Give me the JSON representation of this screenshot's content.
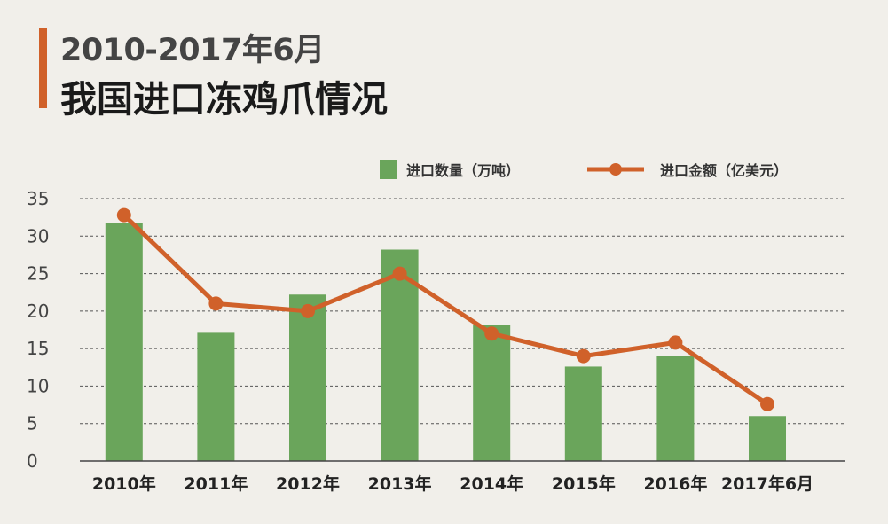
{
  "title": {
    "line1": "2010-2017年6月",
    "line2": "我国进口冻鸡爪情况"
  },
  "colors": {
    "accent": "#d0612a",
    "bar": "#6aa55b",
    "line": "#d0612a",
    "grid": "#555555",
    "background": "#f1efea"
  },
  "chart_data": {
    "type": "bar",
    "categories": [
      "2010年",
      "2011年",
      "2012年",
      "2013年",
      "2014年",
      "2015年",
      "2016年",
      "2017年6月"
    ],
    "series": [
      {
        "name": "进口数量（万吨）",
        "type": "bar",
        "values": [
          31.8,
          17.1,
          22.2,
          28.2,
          18.1,
          12.6,
          14.0,
          6.0
        ]
      },
      {
        "name": "进口金额（亿美元）",
        "type": "line",
        "values": [
          32.8,
          21.0,
          20.0,
          25.0,
          17.0,
          14.0,
          15.8,
          7.6
        ]
      }
    ],
    "yticks": [
      0,
      5,
      10,
      15,
      20,
      25,
      30,
      35
    ],
    "ylim": [
      0,
      35
    ],
    "grid": true,
    "legend_position": "top-right"
  }
}
